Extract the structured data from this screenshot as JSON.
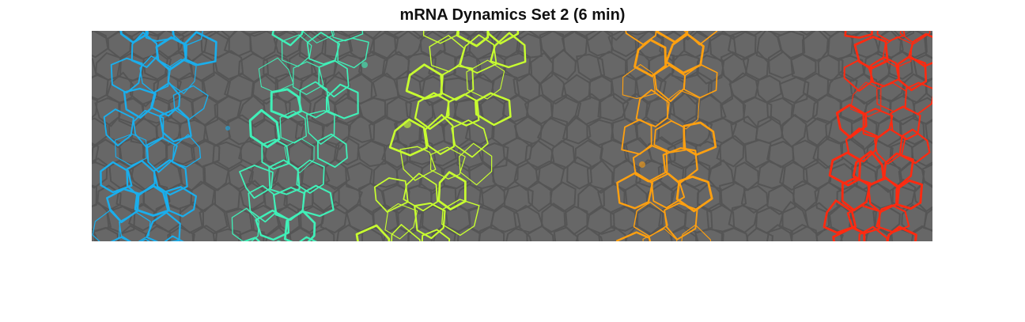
{
  "figure": {
    "title": "mRNA Dynamics Set 2 (6 min)"
  },
  "image": {
    "background_color": "#676767",
    "membrane_color": "#555555",
    "stripes": [
      {
        "name": "stripe-1",
        "color": "#1aaeec"
      },
      {
        "name": "stripe-2",
        "color": "#40f0b8"
      },
      {
        "name": "stripe-3",
        "color": "#c8ff30"
      },
      {
        "name": "stripe-4",
        "color": "#ffa010"
      },
      {
        "name": "stripe-5",
        "color": "#ff2a10"
      }
    ]
  }
}
